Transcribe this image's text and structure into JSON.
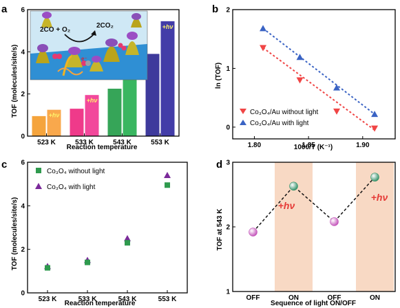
{
  "chart_data": [
    {
      "panel": "a",
      "type": "bar",
      "categories": [
        "523 K",
        "533 K",
        "543 K",
        "553 K"
      ],
      "series": [
        {
          "values": [
            0.95,
            1.3,
            2.25,
            3.9
          ]
        },
        {
          "name": "+hν",
          "values": [
            1.25,
            1.95,
            3.25,
            5.45
          ]
        }
      ],
      "colors_dark": [
        "#f5a43c",
        "#ef3a8a",
        "#36a558",
        "#3e3a9c"
      ],
      "colors_light": [
        "#f9a84c",
        "#f2489b",
        "#39b660",
        "#433da8"
      ],
      "xlabel": "Reaction temperature",
      "ylabel": "TOF (molecules/site/s)",
      "ylim": [
        0,
        6
      ],
      "yticks": [
        "0",
        "2",
        "4",
        "6"
      ],
      "inset": {
        "reactants": "2CO + O₂",
        "product": "2CO₂",
        "electron": "e⁻"
      }
    },
    {
      "panel": "b",
      "type": "scatter",
      "xlabel": "1000/T (K⁻¹)",
      "ylabel": "ln (TOF)",
      "xlim": [
        1.78,
        1.93
      ],
      "ylim": [
        -0.2,
        2
      ],
      "xticks": [
        "1.80",
        "1.85",
        "1.90"
      ],
      "yticks": [
        "0",
        "1",
        "2"
      ],
      "legend_position": "bottom-left",
      "series": [
        {
          "name": "Co₃O₄/Au without light",
          "marker": "triangle-down",
          "color": "#f04545",
          "x": [
            1.808,
            1.842,
            1.876,
            1.911
          ],
          "y": [
            1.35,
            0.8,
            0.27,
            -0.02
          ],
          "fit": [
            [
              1.808,
              1.35
            ],
            [
              1.911,
              -0.05
            ]
          ]
        },
        {
          "name": "Co₃O₄/Au with light",
          "marker": "triangle-up",
          "color": "#3a63c4",
          "x": [
            1.808,
            1.842,
            1.876,
            1.911
          ],
          "y": [
            1.68,
            1.19,
            0.67,
            0.22
          ],
          "fit": [
            [
              1.808,
              1.68
            ],
            [
              1.911,
              0.22
            ]
          ]
        }
      ]
    },
    {
      "panel": "c",
      "type": "scatter",
      "categories": [
        "523 K",
        "533 K",
        "543 K",
        "553 K"
      ],
      "xlabel": "Reaction temperature",
      "ylabel": "TOF (molecules/site/s)",
      "ylim": [
        0,
        6
      ],
      "yticks": [
        "0",
        "2",
        "4",
        "6"
      ],
      "legend_position": "top-left",
      "series": [
        {
          "name": "Co₃O₄ without light",
          "marker": "square",
          "color": "#2f9a4e",
          "values": [
            1.15,
            1.4,
            2.3,
            4.95
          ]
        },
        {
          "name": "Co₃O₄ with light",
          "marker": "triangle-up",
          "color": "#7b2a9a",
          "values": [
            1.22,
            1.5,
            2.5,
            5.4
          ]
        }
      ]
    },
    {
      "panel": "d",
      "type": "line",
      "categories": [
        "OFF",
        "ON",
        "OFF",
        "ON"
      ],
      "values": [
        1.92,
        2.63,
        2.08,
        2.77
      ],
      "point_colors": [
        "#c24fb8",
        "#2f8f66",
        "#c24fb8",
        "#2f8f66"
      ],
      "shaded": [
        1,
        3
      ],
      "shade_color": "#f8d9c4",
      "xlabel": "Sequence of light ON/OFF",
      "ylabel": "TOF at 543 K",
      "ylim": [
        1,
        3
      ],
      "yticks": [
        "1",
        "2",
        "3"
      ],
      "annotations": [
        "+hν",
        "+hν"
      ]
    }
  ]
}
